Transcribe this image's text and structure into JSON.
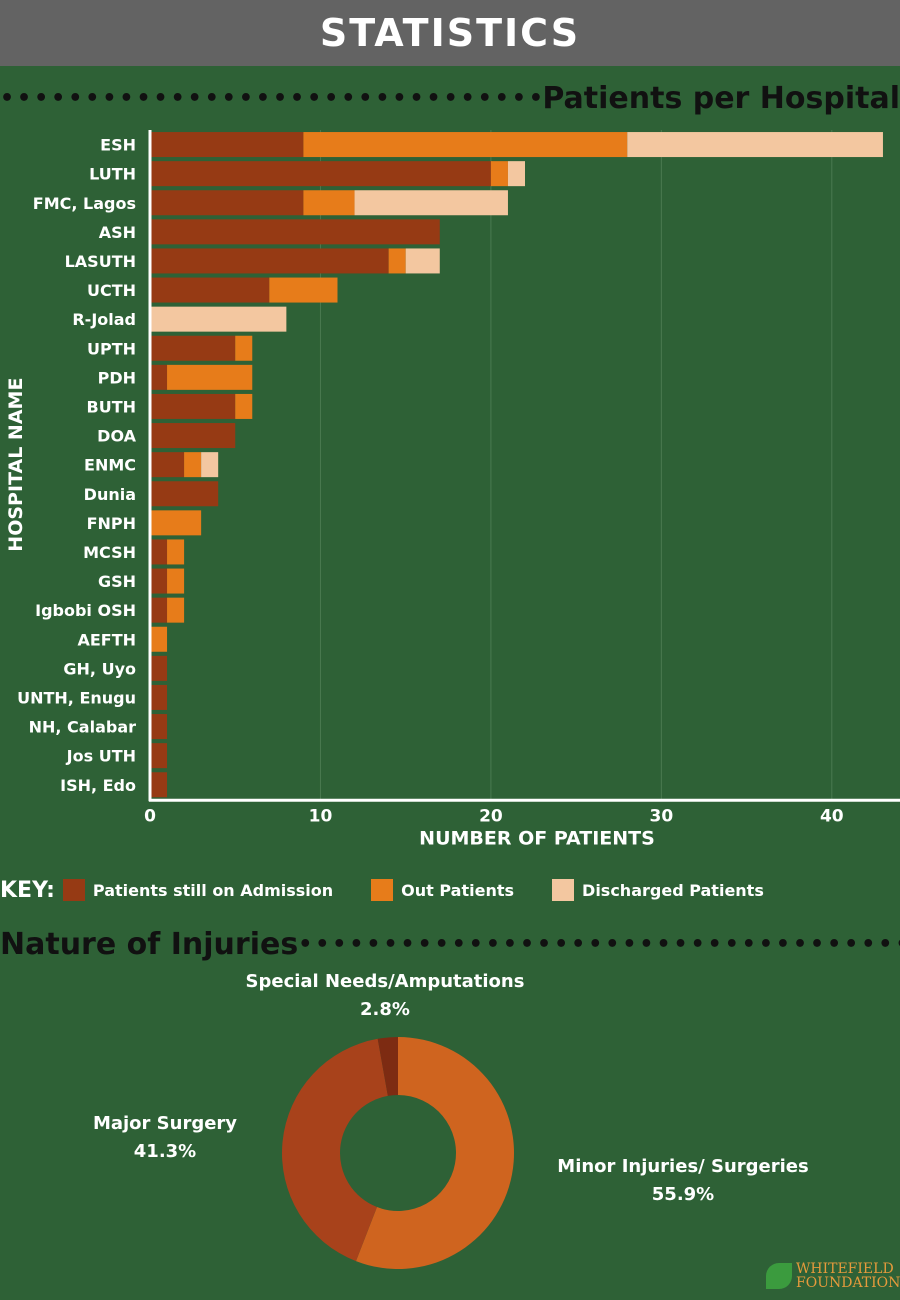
{
  "header": {
    "title": "STATISTICS"
  },
  "sections": {
    "bar_title": "Patients per Hospital",
    "pie_title": "Nature of Injuries"
  },
  "legend": {
    "key_label": "KEY:",
    "items": [
      {
        "label": "Patients still on Admission",
        "color": "#963a14"
      },
      {
        "label": "Out Patients",
        "color": "#e77c1a"
      },
      {
        "label": "Discharged Patients",
        "color": "#f3c7a0"
      }
    ]
  },
  "chart_data": [
    {
      "type": "bar",
      "orientation": "horizontal",
      "stacked": true,
      "title": "Patients per Hospital",
      "xlabel": "NUMBER OF PATIENTS",
      "ylabel": "HOSPITAL NAME",
      "xlim": [
        0,
        44
      ],
      "xticks": [
        0,
        10,
        20,
        30,
        40
      ],
      "grid": true,
      "categories": [
        "ESH",
        "LUTH",
        "FMC, Lagos",
        "ASH",
        "LASUTH",
        "UCTH",
        "R-Jolad",
        "UPTH",
        "PDH",
        "BUTH",
        "DOA",
        "ENMC",
        "Dunia",
        "FNPH",
        "MCSH",
        "GSH",
        "Igbobi OSH",
        "AEFTH",
        "GH, Uyo",
        "UNTH, Enugu",
        "NH, Calabar",
        "Jos UTH",
        "ISH, Edo"
      ],
      "series": [
        {
          "name": "Patients still on Admission",
          "color": "#963a14",
          "values": [
            9,
            20,
            9,
            17,
            14,
            7,
            0,
            5,
            1,
            5,
            5,
            2,
            4,
            0,
            1,
            1,
            1,
            0,
            1,
            1,
            1,
            1,
            1
          ]
        },
        {
          "name": "Out Patients",
          "color": "#e77c1a",
          "values": [
            19,
            1,
            3,
            0,
            1,
            4,
            0,
            1,
            5,
            1,
            0,
            1,
            0,
            3,
            1,
            1,
            1,
            1,
            0,
            0,
            0,
            0,
            0
          ]
        },
        {
          "name": "Discharged Patients",
          "color": "#f3c7a0",
          "values": [
            15,
            1,
            9,
            0,
            2,
            0,
            8,
            0,
            0,
            0,
            0,
            1,
            0,
            0,
            0,
            0,
            0,
            0,
            0,
            0,
            0,
            0,
            0
          ]
        }
      ]
    },
    {
      "type": "pie",
      "donut": true,
      "title": "Nature of Injuries",
      "slices": [
        {
          "label": "Minor Injuries/ Surgeries",
          "value": 55.9,
          "display": "55.9%",
          "color": "#cf641f"
        },
        {
          "label": "Major Surgery",
          "value": 41.3,
          "display": "41.3%",
          "color": "#a8421b"
        },
        {
          "label": "Special Needs/Amputations",
          "value": 2.8,
          "display": "2.8%",
          "color": "#7d2b12"
        }
      ]
    }
  ],
  "logo": {
    "line1": "WHITEFIELD",
    "line2": "FOUNDATION"
  }
}
